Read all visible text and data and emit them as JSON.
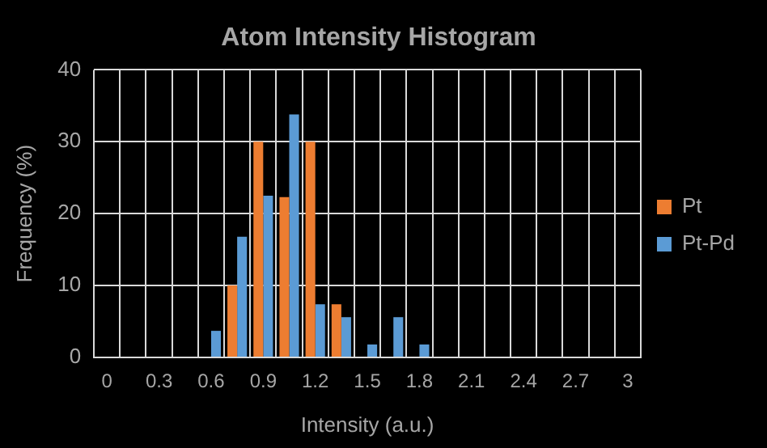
{
  "chart_data": {
    "type": "bar",
    "title": "Atom Intensity Histogram",
    "xlabel": "Intensity (a.u.)",
    "ylabel": "Frequency (%)",
    "categories": [
      "0",
      null,
      "0.3",
      null,
      "0.6",
      null,
      "0.9",
      null,
      "1.2",
      null,
      "1.5",
      null,
      "1.8",
      null,
      "2.1",
      null,
      "2.4",
      null,
      "2.7",
      null,
      "3"
    ],
    "series": [
      {
        "name": "Pt",
        "color": "#ed7d31",
        "values": [
          0,
          0,
          0,
          0,
          0,
          10,
          30,
          22.3,
          30,
          7.4,
          0,
          0,
          0,
          0,
          0,
          0,
          0,
          0,
          0,
          0,
          0
        ]
      },
      {
        "name": "Pt-Pd",
        "color": "#5b9bd5",
        "values": [
          0,
          0,
          0,
          0,
          3.7,
          16.8,
          22.5,
          33.8,
          7.4,
          5.6,
          1.8,
          5.6,
          1.8,
          0,
          0,
          0,
          0,
          0,
          0,
          0,
          0
        ]
      }
    ],
    "ylim": [
      0,
      40
    ],
    "yticks": [
      0,
      10,
      20,
      30,
      40
    ],
    "grid": true,
    "legend": "right"
  }
}
